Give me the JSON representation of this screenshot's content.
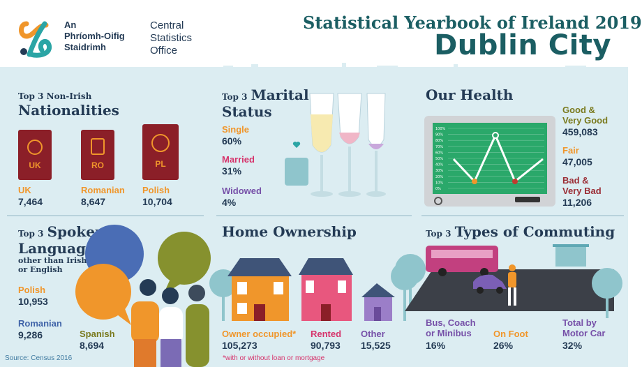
{
  "header": {
    "logo_ga": [
      "An",
      "Phríomh-Oifig",
      "Staidrimh"
    ],
    "logo_en": [
      "Central",
      "Statistics",
      "Office"
    ],
    "title_line1": "Statistical Yearbook of Ireland 2019",
    "title_line2": "Dublin City"
  },
  "nationalities": {
    "title_small": "Top 3 Non-Irish",
    "title_big": "Nationalities",
    "items": [
      {
        "badge": "UK",
        "label": "UK",
        "value": "7,464"
      },
      {
        "badge": "RO",
        "label": "Romanian",
        "value": "8,647"
      },
      {
        "badge": "PL",
        "label": "Polish",
        "value": "10,704"
      }
    ]
  },
  "marital": {
    "title_small": "Top 3",
    "title_big1": "Marital",
    "title_big2": "Status",
    "items": [
      {
        "label": "Single",
        "value": "60%"
      },
      {
        "label": "Married",
        "value": "31%"
      },
      {
        "label": "Widowed",
        "value": "4%"
      }
    ]
  },
  "health": {
    "title": "Our Health",
    "chart_ticks": [
      "100%",
      "90%",
      "80%",
      "70%",
      "60%",
      "50%",
      "40%",
      "30%",
      "20%",
      "10%",
      "0%"
    ],
    "items": [
      {
        "label": "Good &",
        "label2": "Very Good",
        "value": "459,083"
      },
      {
        "label": "Fair",
        "label2": "",
        "value": "47,005"
      },
      {
        "label": "Bad &",
        "label2": "Very Bad",
        "value": "11,206"
      }
    ]
  },
  "languages": {
    "title_small": "Top 3",
    "title_big1": "Spoken",
    "title_big2": "Languages",
    "subtitle1": "other than Irish",
    "subtitle2": "or English",
    "items": [
      {
        "label": "Polish",
        "value": "10,953"
      },
      {
        "label": "Romanian",
        "value": "9,286"
      },
      {
        "label": "Spanish",
        "value": "8,694"
      }
    ]
  },
  "ownership": {
    "title": "Home Ownership",
    "items": [
      {
        "label": "Owner occupied*",
        "value": "105,273"
      },
      {
        "label": "Rented",
        "value": "90,793"
      },
      {
        "label": "Other",
        "value": "15,525"
      }
    ],
    "note": "*with or without loan or mortgage"
  },
  "commuting": {
    "title_small": "Top 3",
    "title_big": "Types of Commuting",
    "items": [
      {
        "label": "Bus, Coach",
        "label2": "or Minibus",
        "value": "16%"
      },
      {
        "label": "On Foot",
        "label2": "",
        "value": "26%"
      },
      {
        "label": "Total by",
        "label2": "Motor Car",
        "value": "32%"
      }
    ]
  },
  "footer": {
    "source": "Source: Census 2016"
  },
  "colors": {
    "teal_dark": "#1b5e63",
    "navy": "#243b55",
    "orange": "#f0962b",
    "pink": "#d6336b",
    "purple": "#7650a8",
    "panel": "#dcedf2"
  }
}
